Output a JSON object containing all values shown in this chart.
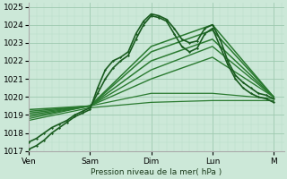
{
  "background_color": "#cce8d8",
  "grid_color_major": "#9ec9b0",
  "grid_color_minor": "#b8ddc8",
  "line_color_dark": "#1a5c20",
  "line_color_mid": "#2a7a30",
  "line_color_light": "#3a9040",
  "xlabel": "Pression niveau de la mer( hPa )",
  "ylim": [
    1017,
    1025.2
  ],
  "ytick_values": [
    1017,
    1018,
    1019,
    1020,
    1021,
    1022,
    1023,
    1024,
    1025
  ],
  "x_day_labels": [
    "Ven",
    "Sam",
    "Dim",
    "Lun",
    "M"
  ],
  "x_day_positions": [
    0,
    24,
    48,
    72,
    96
  ],
  "total_hours": 100,
  "detailed_series": [
    {
      "x": [
        0,
        3,
        6,
        9,
        12,
        15,
        18,
        21,
        24,
        27,
        30,
        33,
        36,
        39,
        42,
        45,
        48,
        51,
        54,
        57,
        60,
        63,
        66,
        69,
        72,
        75,
        78,
        81,
        84,
        87,
        90,
        93,
        96
      ],
      "y": [
        1017.1,
        1017.3,
        1017.6,
        1018.0,
        1018.3,
        1018.6,
        1018.9,
        1019.1,
        1019.3,
        1020.5,
        1021.5,
        1022.0,
        1022.2,
        1022.5,
        1023.5,
        1024.2,
        1024.6,
        1024.5,
        1024.3,
        1023.8,
        1023.2,
        1023.0,
        1023.1,
        1023.8,
        1024.0,
        1023.2,
        1022.0,
        1021.2,
        1020.8,
        1020.5,
        1020.2,
        1020.1,
        1019.9
      ],
      "lw": 1.2,
      "color": "#1a5c20"
    },
    {
      "x": [
        0,
        3,
        6,
        9,
        12,
        15,
        18,
        21,
        24,
        27,
        30,
        33,
        36,
        39,
        42,
        45,
        48,
        51,
        54,
        57,
        60,
        63,
        66,
        69,
        72,
        75,
        78,
        81,
        84,
        87,
        90,
        93,
        96
      ],
      "y": [
        1017.5,
        1017.7,
        1018.0,
        1018.3,
        1018.5,
        1018.7,
        1019.0,
        1019.2,
        1019.4,
        1020.2,
        1021.0,
        1021.6,
        1022.0,
        1022.3,
        1023.2,
        1024.0,
        1024.5,
        1024.4,
        1024.2,
        1023.5,
        1022.8,
        1022.5,
        1022.7,
        1023.5,
        1023.8,
        1022.8,
        1021.8,
        1021.0,
        1020.5,
        1020.2,
        1020.0,
        1019.9,
        1019.7
      ],
      "lw": 1.2,
      "color": "#1a5c20"
    }
  ],
  "fan_series": [
    {
      "x": [
        0,
        24,
        48,
        72,
        96
      ],
      "y": [
        1019.3,
        1019.5,
        1022.8,
        1024.0,
        1020.0
      ],
      "lw": 1.1
    },
    {
      "x": [
        0,
        24,
        48,
        72,
        96
      ],
      "y": [
        1019.2,
        1019.5,
        1022.5,
        1023.7,
        1020.0
      ],
      "lw": 1.1
    },
    {
      "x": [
        0,
        24,
        48,
        72,
        96
      ],
      "y": [
        1019.1,
        1019.5,
        1022.0,
        1023.2,
        1020.0
      ],
      "lw": 1.1
    },
    {
      "x": [
        0,
        24,
        48,
        72,
        96
      ],
      "y": [
        1019.0,
        1019.5,
        1021.5,
        1022.8,
        1020.0
      ],
      "lw": 1.0
    },
    {
      "x": [
        0,
        24,
        48,
        72,
        96
      ],
      "y": [
        1018.9,
        1019.5,
        1021.0,
        1022.2,
        1020.0
      ],
      "lw": 1.0
    },
    {
      "x": [
        0,
        24,
        48,
        72,
        96
      ],
      "y": [
        1018.8,
        1019.5,
        1020.2,
        1020.2,
        1019.9
      ],
      "lw": 0.9
    },
    {
      "x": [
        0,
        24,
        48,
        72,
        96
      ],
      "y": [
        1018.7,
        1019.4,
        1019.7,
        1019.8,
        1019.8
      ],
      "lw": 0.9
    }
  ]
}
